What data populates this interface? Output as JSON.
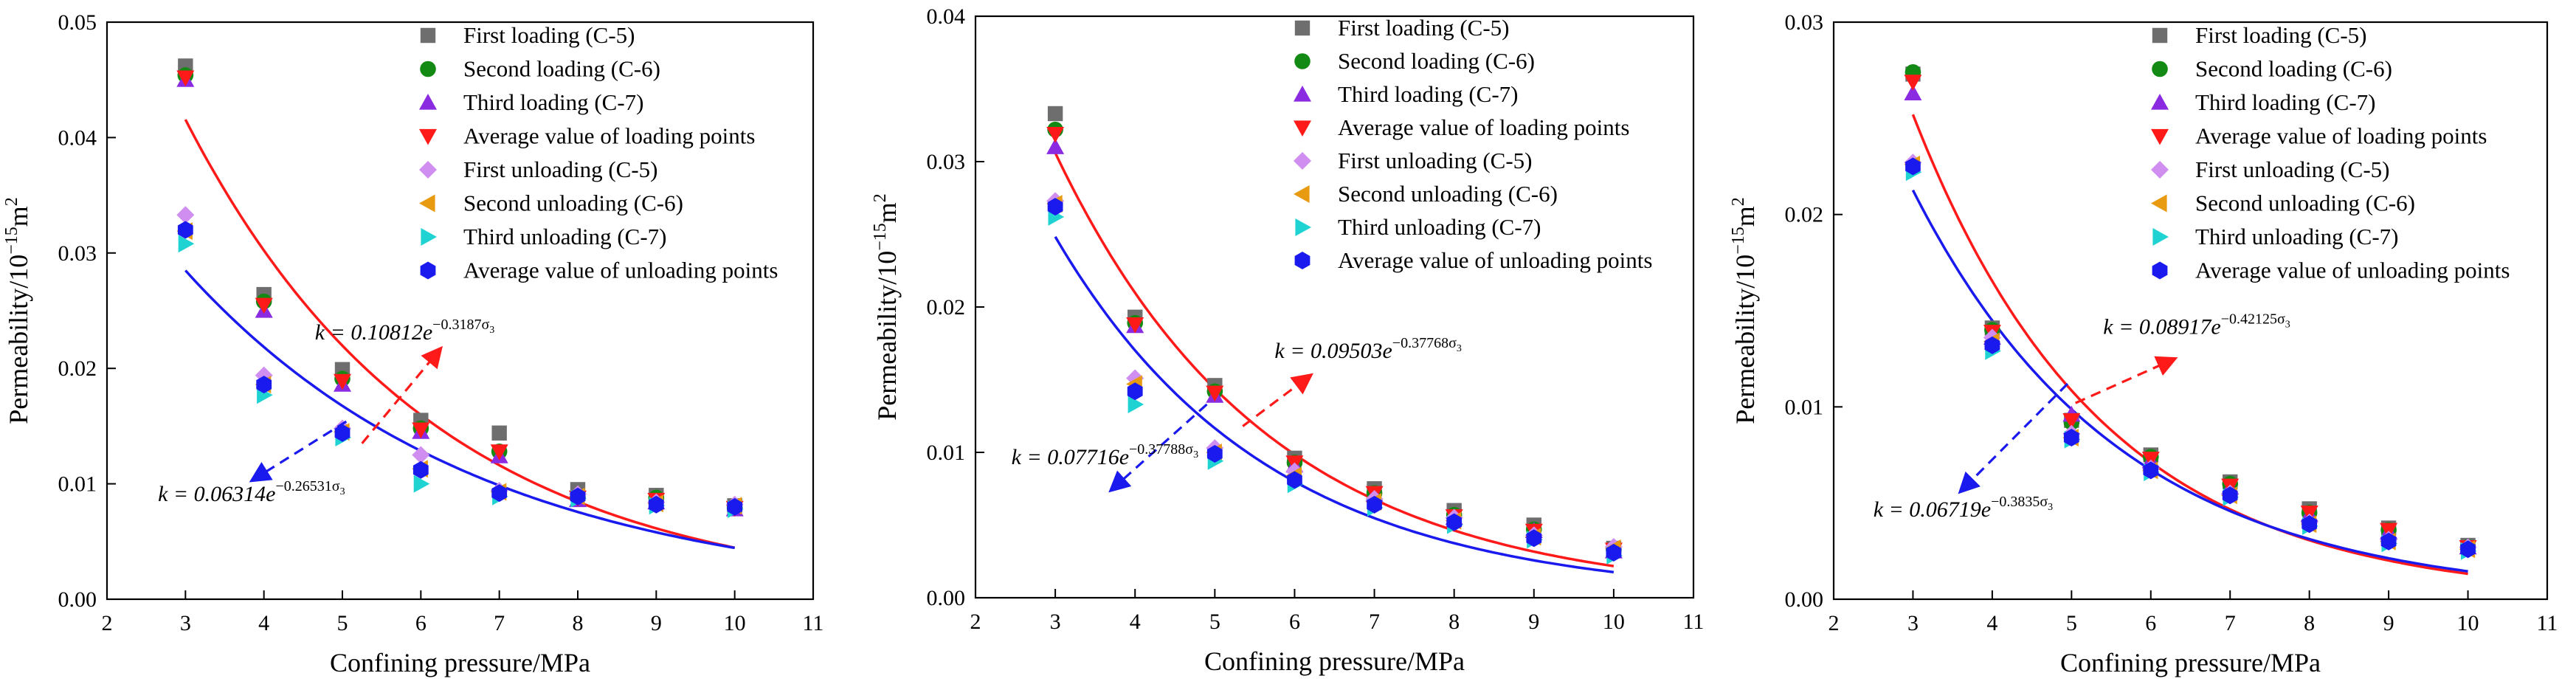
{
  "figure": {
    "panels_count": 3
  },
  "legend_labels": [
    "First loading (C-5)",
    "Second loading (C-6)",
    "Third loading (C-7)",
    "Average value of loading points",
    "First unloading (C-5)",
    "Second unloading  (C-6)",
    "Third unloading (C-7)",
    "Average value of unloading points"
  ],
  "series_style": [
    {
      "name": "First loading (C-5)",
      "marker": "square",
      "color": "#6e6e6e"
    },
    {
      "name": "Second loading (C-6)",
      "marker": "circle",
      "color": "#138a13"
    },
    {
      "name": "Third loading (C-7)",
      "marker": "triangle-up",
      "color": "#8a2be2"
    },
    {
      "name": "Average value of loading points",
      "marker": "triangle-down",
      "color": "#ff1a1a"
    },
    {
      "name": "First unloading (C-5)",
      "marker": "diamond",
      "color": "#d08ef0"
    },
    {
      "name": "Second unloading  (C-6)",
      "marker": "triangle-left",
      "color": "#e89a10"
    },
    {
      "name": "Third unloading (C-7)",
      "marker": "triangle-right",
      "color": "#1fd3d3"
    },
    {
      "name": "Average value of unloading points",
      "marker": "hexagon",
      "color": "#1a1aee"
    }
  ],
  "fit_colors": {
    "loading": "#ff1a1a",
    "unloading": "#1a1aee"
  },
  "chart_data": [
    {
      "type": "scatter",
      "panel": "left",
      "xlabel": "Confining pressure/MPa",
      "ylabel": "Permeability/10",
      "ylabel_sup": "−15",
      "ylabel_unit": "m",
      "ylabel_unit_sup": "2",
      "xlim": [
        2,
        11
      ],
      "ylim": [
        0,
        0.05
      ],
      "x_ticks": [
        2,
        3,
        4,
        5,
        6,
        7,
        8,
        9,
        10,
        11
      ],
      "y_ticks": [
        0.0,
        0.01,
        0.02,
        0.03,
        0.04,
        0.05
      ],
      "y_tick_labels": [
        "0.00",
        "0.01",
        "0.02",
        "0.03",
        "0.04",
        "0.05"
      ],
      "x": [
        3,
        4,
        5,
        6,
        7,
        8,
        9,
        10
      ],
      "series": [
        {
          "name": "First loading (C-5)",
          "values": [
            0.0462,
            0.0264,
            0.0199,
            0.0155,
            0.0144,
            0.0095,
            0.009,
            0.0081
          ]
        },
        {
          "name": "Second loading (C-6)",
          "values": [
            0.0454,
            0.0258,
            0.0191,
            0.0148,
            0.0128,
            0.0088,
            0.0088,
            0.0079
          ]
        },
        {
          "name": "Third loading (C-7)",
          "values": [
            0.045,
            0.025,
            0.0186,
            0.0145,
            0.0124,
            0.0086,
            0.0084,
            0.0078
          ]
        },
        {
          "name": "Average value of loading points",
          "values": [
            0.0452,
            0.0255,
            0.0189,
            0.0147,
            0.0128,
            0.0088,
            0.0086,
            0.0079
          ]
        },
        {
          "name": "First unloading (C-5)",
          "values": [
            0.0333,
            0.0194,
            0.0148,
            0.0125,
            0.0094,
            0.0091,
            0.0084,
            0.0082
          ]
        },
        {
          "name": "Second unloading  (C-6)",
          "values": [
            0.0319,
            0.0186,
            0.0145,
            0.0113,
            0.0093,
            0.0089,
            0.0083,
            0.0081
          ]
        },
        {
          "name": "Third unloading (C-7)",
          "values": [
            0.0308,
            0.0177,
            0.014,
            0.01,
            0.0089,
            0.0087,
            0.0081,
            0.0078
          ]
        },
        {
          "name": "Average value of unloading points",
          "values": [
            0.032,
            0.0186,
            0.0144,
            0.0112,
            0.0092,
            0.0089,
            0.0082,
            0.008
          ]
        }
      ],
      "fits": [
        {
          "kind": "loading",
          "a": 0.10812,
          "b": 0.3187,
          "from": 3,
          "to": 10
        },
        {
          "kind": "unloading",
          "a": 0.06314,
          "b": 0.26531,
          "from": 3,
          "to": 10
        }
      ],
      "annotations": [
        {
          "kind": "loading",
          "prefix": "k = 0.10812",
          "base": "e",
          "exponent": "−0.3187σ",
          "sub": "3",
          "arrow_from": [
            5.25,
            0.0135
          ],
          "arrow_to": [
            6.25,
            0.0217
          ],
          "label_at": [
            4.65,
            0.0225
          ]
        },
        {
          "kind": "unloading",
          "prefix": "k = 0.06314",
          "base": "e",
          "exponent": "−0.26531σ",
          "sub": "3",
          "arrow_from": [
            5.05,
            0.0154
          ],
          "arrow_to": [
            3.85,
            0.0103
          ],
          "label_at": [
            2.65,
            0.0085
          ]
        }
      ]
    },
    {
      "type": "scatter",
      "panel": "middle",
      "xlabel": "Confining pressure/MPa",
      "ylabel": "Permeability/10",
      "ylabel_sup": "−15",
      "ylabel_unit": "m",
      "ylabel_unit_sup": "2",
      "xlim": [
        2,
        11
      ],
      "ylim": [
        0,
        0.04
      ],
      "x_ticks": [
        2,
        3,
        4,
        5,
        6,
        7,
        8,
        9,
        10,
        11
      ],
      "y_ticks": [
        0.0,
        0.01,
        0.02,
        0.03,
        0.04
      ],
      "y_tick_labels": [
        "0.00",
        "0.01",
        "0.02",
        "0.03",
        "0.04"
      ],
      "x": [
        3,
        4,
        5,
        6,
        7,
        8,
        9,
        10
      ],
      "series": [
        {
          "name": "First loading (C-5)",
          "values": [
            0.0333,
            0.0193,
            0.0146,
            0.0096,
            0.0075,
            0.006,
            0.005,
            0.0034
          ]
        },
        {
          "name": "Second loading (C-6)",
          "values": [
            0.0322,
            0.0189,
            0.0142,
            0.0093,
            0.0072,
            0.0057,
            0.0047,
            0.0033
          ]
        },
        {
          "name": "Third loading (C-7)",
          "values": [
            0.031,
            0.0187,
            0.0139,
            0.0091,
            0.0071,
            0.0055,
            0.0046,
            0.0032
          ]
        },
        {
          "name": "Average value of loading points",
          "values": [
            0.0319,
            0.0188,
            0.0141,
            0.0093,
            0.0072,
            0.0056,
            0.0046,
            0.0033
          ]
        },
        {
          "name": "First unloading (C-5)",
          "values": [
            0.0273,
            0.0151,
            0.0103,
            0.0087,
            0.0068,
            0.0055,
            0.0043,
            0.0035
          ]
        },
        {
          "name": "Second unloading  (C-6)",
          "values": [
            0.0271,
            0.0147,
            0.01,
            0.0084,
            0.0066,
            0.0053,
            0.0042,
            0.0034
          ]
        },
        {
          "name": "Third unloading (C-7)",
          "values": [
            0.0262,
            0.0133,
            0.0094,
            0.0078,
            0.0062,
            0.005,
            0.004,
            0.0029
          ]
        },
        {
          "name": "Average value of unloading points",
          "values": [
            0.0269,
            0.0142,
            0.0099,
            0.0081,
            0.0064,
            0.0052,
            0.0041,
            0.0031
          ]
        }
      ],
      "fits": [
        {
          "kind": "loading",
          "a": 0.09503,
          "b": 0.37768,
          "from": 3,
          "to": 10
        },
        {
          "kind": "unloading",
          "a": 0.07716,
          "b": 0.37788,
          "from": 3,
          "to": 10
        }
      ],
      "annotations": [
        {
          "kind": "loading",
          "prefix": "k = 0.09503",
          "base": "e",
          "exponent": "−0.37768σ",
          "sub": "3",
          "arrow_from": [
            5.35,
            0.0118
          ],
          "arrow_to": [
            6.2,
            0.0153
          ],
          "label_at": [
            5.75,
            0.0165
          ]
        },
        {
          "kind": "unloading",
          "prefix": "k = 0.07716",
          "base": "e",
          "exponent": "−0.37788σ",
          "sub": "3",
          "arrow_from": [
            4.9,
            0.0133
          ],
          "arrow_to": [
            3.7,
            0.0074
          ],
          "label_at": [
            2.45,
            0.0092
          ]
        }
      ]
    },
    {
      "type": "scatter",
      "panel": "right",
      "xlabel": "Confining pressure/MPa",
      "ylabel": "Permeability/10",
      "ylabel_sup": "−15",
      "ylabel_unit": "m",
      "ylabel_unit_sup": "2",
      "xlim": [
        2,
        11
      ],
      "ylim": [
        0,
        0.03
      ],
      "x_ticks": [
        2,
        3,
        4,
        5,
        6,
        7,
        8,
        9,
        10,
        11
      ],
      "y_ticks": [
        0.0,
        0.01,
        0.02,
        0.03
      ],
      "y_tick_labels": [
        "0.00",
        "0.01",
        "0.02",
        "0.03"
      ],
      "x": [
        3,
        4,
        5,
        6,
        7,
        8,
        9,
        10
      ],
      "series": [
        {
          "name": "First loading (C-5)",
          "values": [
            0.0273,
            0.0141,
            0.0093,
            0.0075,
            0.0061,
            0.0047,
            0.0037,
            0.0028
          ]
        },
        {
          "name": "Second loading (C-6)",
          "values": [
            0.0274,
            0.014,
            0.0092,
            0.0074,
            0.006,
            0.0045,
            0.0036,
            0.0027
          ]
        },
        {
          "name": "Third loading (C-7)",
          "values": [
            0.0263,
            0.0136,
            0.0096,
            0.0072,
            0.0058,
            0.0044,
            0.0035,
            0.0027
          ]
        },
        {
          "name": "Average value of loading points",
          "values": [
            0.0269,
            0.0139,
            0.0093,
            0.0073,
            0.0059,
            0.0045,
            0.0036,
            0.0027
          ]
        },
        {
          "name": "First unloading (C-5)",
          "values": [
            0.0227,
            0.0136,
            0.0086,
            0.0068,
            0.0055,
            0.004,
            0.0031,
            0.0027
          ]
        },
        {
          "name": "Second unloading  (C-6)",
          "values": [
            0.0226,
            0.0134,
            0.0084,
            0.0067,
            0.0054,
            0.0039,
            0.003,
            0.0026
          ]
        },
        {
          "name": "Third unloading (C-7)",
          "values": [
            0.0222,
            0.0129,
            0.0083,
            0.0066,
            0.0053,
            0.0038,
            0.0029,
            0.0025
          ]
        },
        {
          "name": "Average value of unloading points",
          "values": [
            0.0225,
            0.0132,
            0.0084,
            0.0067,
            0.0054,
            0.0039,
            0.003,
            0.0026
          ]
        }
      ],
      "fits": [
        {
          "kind": "loading",
          "a": 0.08917,
          "b": 0.42125,
          "from": 3,
          "to": 10
        },
        {
          "kind": "unloading",
          "a": 0.06719,
          "b": 0.3835,
          "from": 3,
          "to": 10
        }
      ],
      "annotations": [
        {
          "kind": "loading",
          "prefix": "k = 0.08917",
          "base": "e",
          "exponent": "−0.42125σ",
          "sub": "3",
          "arrow_from": [
            5.05,
            0.0102
          ],
          "arrow_to": [
            6.3,
            0.0125
          ],
          "label_at": [
            5.4,
            0.0138
          ]
        },
        {
          "kind": "unloading",
          "prefix": "k = 0.06719",
          "base": "e",
          "exponent": "−0.3835σ",
          "sub": "3",
          "arrow_from": [
            4.95,
            0.0112
          ],
          "arrow_to": [
            3.6,
            0.0056
          ],
          "label_at": [
            2.5,
            0.0043
          ]
        }
      ]
    }
  ]
}
